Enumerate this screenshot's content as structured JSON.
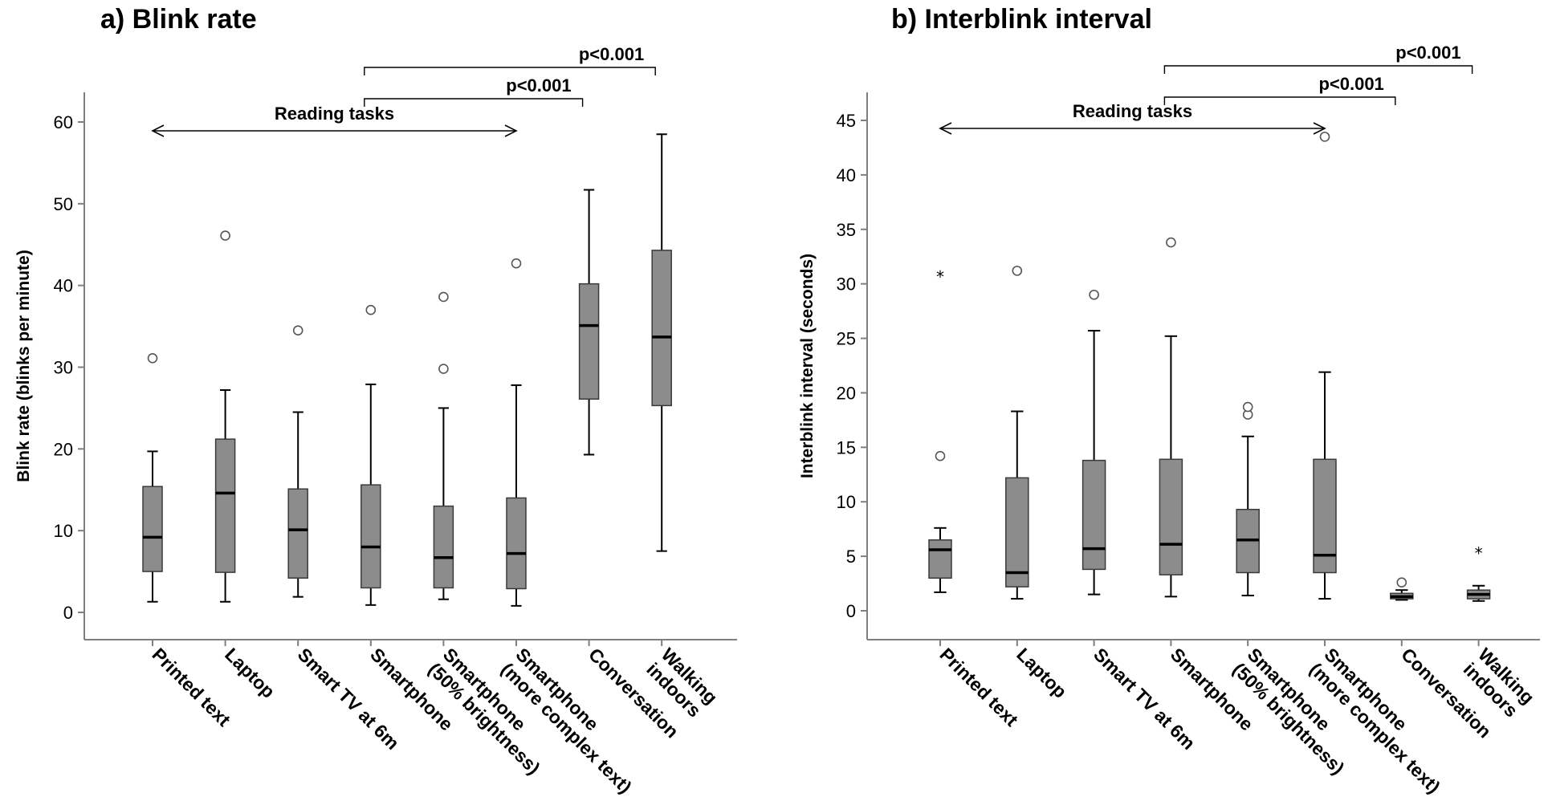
{
  "chart_data": [
    {
      "type": "box",
      "title": "a) Blink rate",
      "ylabel": "Blink rate (blinks per minute)",
      "ylim": [
        -3,
        63
      ],
      "yticks": [
        "0",
        "10",
        "20",
        "30",
        "40",
        "50",
        "60"
      ],
      "categories": [
        "Printed text",
        "Laptop",
        "Smart TV at 6m",
        "Smartphone",
        "Smartphone\n(50% brightness)",
        "Smartphone\n(more complex text)",
        "Conversation",
        "Walking\nindoors"
      ],
      "boxes": [
        {
          "min": 1.3,
          "q1": 5.0,
          "median": 9.2,
          "q3": 15.4,
          "max": 19.7,
          "outliers": [
            31.1
          ],
          "extremes": []
        },
        {
          "min": 1.3,
          "q1": 4.9,
          "median": 14.6,
          "q3": 21.2,
          "max": 27.2,
          "outliers": [
            46.1
          ],
          "extremes": []
        },
        {
          "min": 1.9,
          "q1": 4.2,
          "median": 10.1,
          "q3": 15.1,
          "max": 24.5,
          "outliers": [
            34.5
          ],
          "extremes": []
        },
        {
          "min": 0.9,
          "q1": 3.0,
          "median": 8.0,
          "q3": 15.6,
          "max": 27.9,
          "outliers": [
            37.0
          ],
          "extremes": []
        },
        {
          "min": 1.6,
          "q1": 3.0,
          "median": 6.7,
          "q3": 13.0,
          "max": 25.0,
          "outliers": [
            29.8,
            38.6
          ],
          "extremes": []
        },
        {
          "min": 0.8,
          "q1": 2.9,
          "median": 7.2,
          "q3": 14.0,
          "max": 27.8,
          "outliers": [
            42.7
          ],
          "extremes": []
        },
        {
          "min": 19.3,
          "q1": 26.1,
          "median": 35.1,
          "q3": 40.2,
          "max": 51.7,
          "outliers": [],
          "extremes": []
        },
        {
          "min": 7.5,
          "q1": 25.3,
          "median": 33.7,
          "q3": 44.3,
          "max": 58.5,
          "outliers": [],
          "extremes": []
        }
      ],
      "annotations": {
        "range_label": "Reading tasks",
        "range": [
          0,
          5
        ],
        "brackets": [
          {
            "label": "p<0.001",
            "from": 3,
            "to": 6,
            "level": 1
          },
          {
            "label": "p<0.001",
            "from": 3,
            "to": 7,
            "level": 2
          }
        ]
      }
    },
    {
      "type": "box",
      "title": "b) Interblink interval",
      "ylabel": "Interblink interval (seconds)",
      "ylim": [
        -2.5,
        47.5
      ],
      "yticks": [
        "0",
        "5",
        "10",
        "15",
        "20",
        "25",
        "30",
        "35",
        "40",
        "45"
      ],
      "categories": [
        "Printed text",
        "Laptop",
        "Smart TV at 6m",
        "Smartphone",
        "Smartphone\n(50% brightness)",
        "Smartphone\n(more complex text)",
        "Conversation",
        "Walking\nindoors"
      ],
      "boxes": [
        {
          "min": 1.7,
          "q1": 3.0,
          "median": 5.6,
          "q3": 6.5,
          "max": 7.6,
          "outliers": [
            14.2
          ],
          "extremes": [
            30.8
          ]
        },
        {
          "min": 1.1,
          "q1": 2.2,
          "median": 3.5,
          "q3": 12.2,
          "max": 18.3,
          "outliers": [
            31.2
          ],
          "extremes": []
        },
        {
          "min": 1.5,
          "q1": 3.8,
          "median": 5.7,
          "q3": 13.8,
          "max": 25.7,
          "outliers": [
            29.0
          ],
          "extremes": []
        },
        {
          "min": 1.3,
          "q1": 3.3,
          "median": 6.1,
          "q3": 13.9,
          "max": 25.2,
          "outliers": [
            33.8
          ],
          "extremes": []
        },
        {
          "min": 1.4,
          "q1": 3.5,
          "median": 6.5,
          "q3": 9.3,
          "max": 16.0,
          "outliers": [
            18.0,
            18.7
          ],
          "extremes": []
        },
        {
          "min": 1.1,
          "q1": 3.5,
          "median": 5.1,
          "q3": 13.9,
          "max": 21.9,
          "outliers": [
            43.5
          ],
          "extremes": []
        },
        {
          "min": 1.0,
          "q1": 1.1,
          "median": 1.3,
          "q3": 1.6,
          "max": 1.9,
          "outliers": [
            2.6
          ],
          "extremes": []
        },
        {
          "min": 0.9,
          "q1": 1.1,
          "median": 1.5,
          "q3": 1.9,
          "max": 2.3,
          "outliers": [],
          "extremes": [
            5.4
          ]
        }
      ],
      "annotations": {
        "range_label": "Reading tasks",
        "range": [
          0,
          5
        ],
        "brackets": [
          {
            "label": "p<0.001",
            "from": 3,
            "to": 6,
            "level": 1
          },
          {
            "label": "p<0.001",
            "from": 3,
            "to": 7,
            "level": 2
          }
        ]
      }
    }
  ],
  "style": {
    "box_fill": "#8c8c8c",
    "box_stroke": "#3a3a3a",
    "axis_color": "#7f7f7f",
    "median_color": "#000000"
  }
}
